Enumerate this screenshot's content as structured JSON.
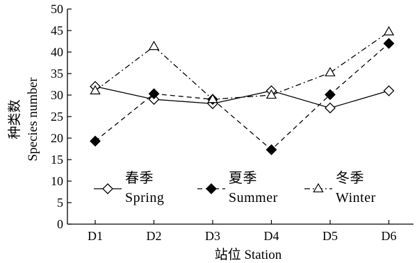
{
  "chart_data": {
    "type": "line",
    "title": "",
    "categories": [
      "D1",
      "D2",
      "D3",
      "D4",
      "D5",
      "D6"
    ],
    "xlabel": "站位 Station",
    "ylabel": [
      "种类数",
      "Species number"
    ],
    "ylim": [
      0,
      50
    ],
    "yticks": [
      0,
      5,
      10,
      15,
      20,
      25,
      30,
      35,
      40,
      45,
      50
    ],
    "grid": false,
    "legend_position": "middle",
    "series": [
      {
        "name": "春季",
        "name_en": "Spring",
        "values": [
          32,
          29,
          28,
          31,
          27,
          31
        ],
        "line_style": "solid",
        "marker": "diamond-open",
        "color": "#000000"
      },
      {
        "name": "夏季",
        "name_en": "Summer",
        "values": [
          19.3,
          30.3,
          29,
          17.3,
          30.1,
          42
        ],
        "line_style": "dashed",
        "marker": "diamond-filled",
        "color": "#000000"
      },
      {
        "name": "冬季",
        "name_en": "Winter",
        "values": [
          31,
          41.3,
          29,
          30,
          35.2,
          44.7
        ],
        "line_style": "dashdot",
        "marker": "triangle-open",
        "color": "#000000"
      }
    ]
  }
}
